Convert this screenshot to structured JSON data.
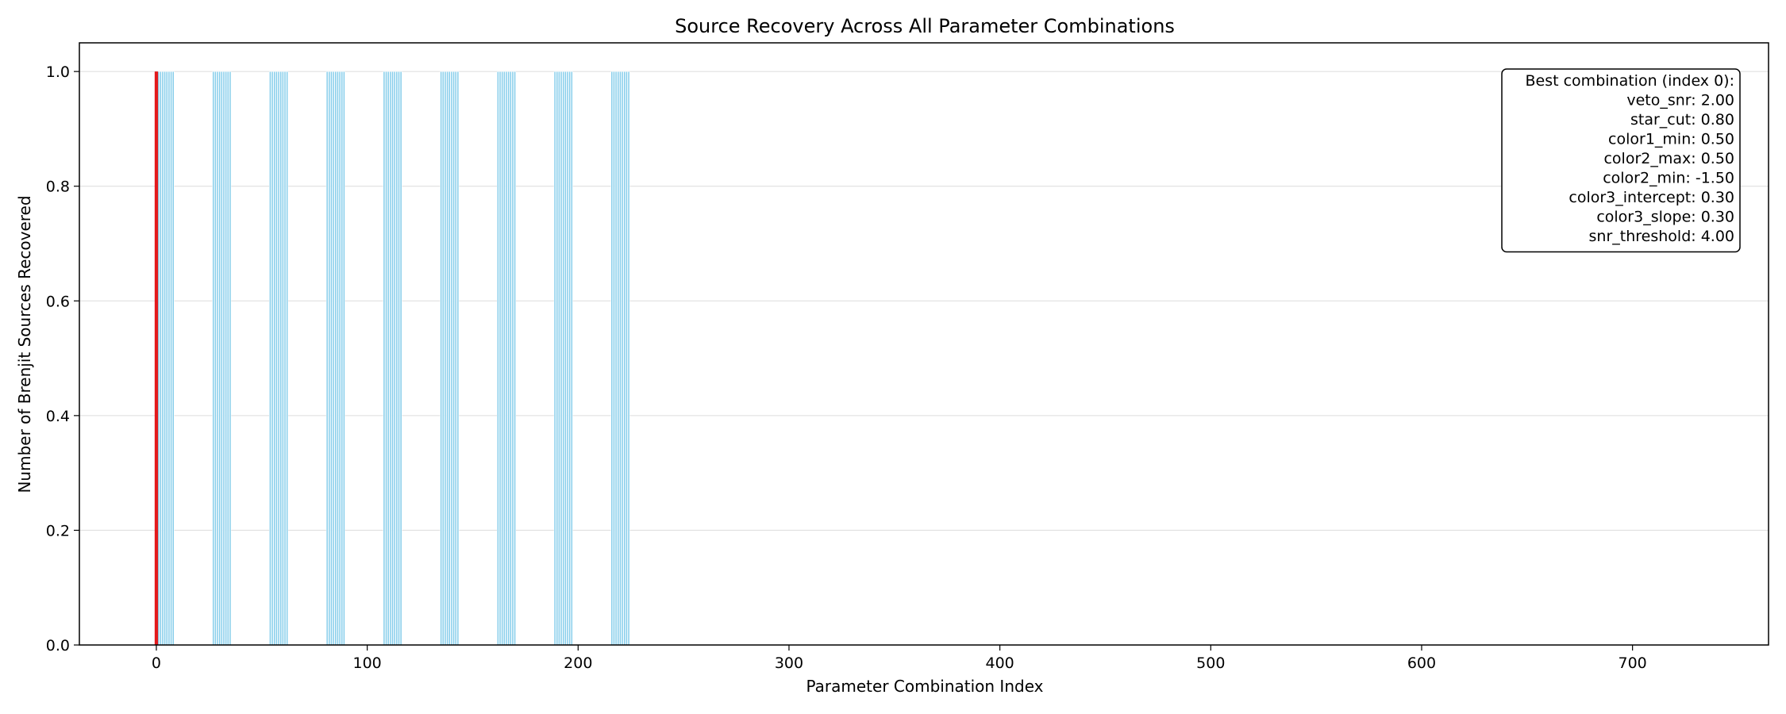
{
  "chart_data": {
    "type": "bar",
    "title": "Source Recovery Across All Parameter Combinations",
    "xlabel": "Parameter Combination Index",
    "ylabel": "Number of Brenjit Sources Recovered",
    "xlim": [
      -36.5,
      764.5
    ],
    "ylim": [
      0,
      1.05
    ],
    "xticks": [
      0,
      100,
      200,
      300,
      400,
      500,
      600,
      700
    ],
    "yticks": [
      0.0,
      0.2,
      0.4,
      0.6,
      0.8,
      1.0
    ],
    "ytick_labels": [
      "0.0",
      "0.2",
      "0.4",
      "0.6",
      "0.8",
      "1.0"
    ],
    "grid": "y",
    "bar_color": "#87ceeb",
    "highlight_color": "#e31a1c",
    "highlight_index": 0,
    "bar_groups": [
      {
        "start": 0,
        "end": 8,
        "value": 1
      },
      {
        "start": 27,
        "end": 35,
        "value": 1
      },
      {
        "start": 54,
        "end": 62,
        "value": 1
      },
      {
        "start": 81,
        "end": 89,
        "value": 1
      },
      {
        "start": 108,
        "end": 116,
        "value": 1
      },
      {
        "start": 135,
        "end": 143,
        "value": 1
      },
      {
        "start": 162,
        "end": 170,
        "value": 1
      },
      {
        "start": 189,
        "end": 197,
        "value": 1
      },
      {
        "start": 216,
        "end": 224,
        "value": 1
      }
    ],
    "n_combinations": 729,
    "annotation": {
      "lines": [
        "Best combination (index 0):",
        "veto_snr: 2.00",
        "star_cut: 0.80",
        "color1_min: 0.50",
        "color2_max: 0.50",
        "color2_min: -1.50",
        "color3_intercept: 0.30",
        "color3_slope: 0.30",
        "snr_threshold: 4.00"
      ],
      "placement": "top-right"
    }
  }
}
